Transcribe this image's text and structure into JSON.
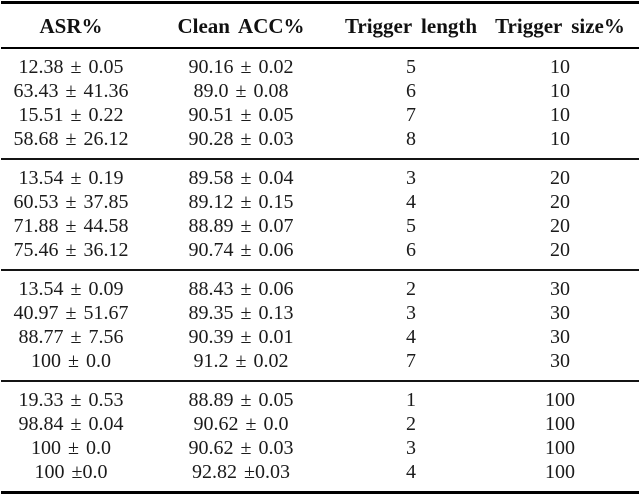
{
  "table": {
    "columns": [
      "ASR%",
      "Clean ACC%",
      "Trigger length",
      "Trigger size%"
    ],
    "groups": [
      {
        "trigger_size": "10",
        "rows": [
          [
            "12.38 ± 0.05",
            "90.16 ± 0.02",
            "5",
            "10"
          ],
          [
            "63.43 ± 41.36",
            "89.0 ± 0.08",
            "6",
            "10"
          ],
          [
            "15.51 ± 0.22",
            "90.51 ± 0.05",
            "7",
            "10"
          ],
          [
            "58.68 ± 26.12",
            "90.28 ± 0.03",
            "8",
            "10"
          ]
        ]
      },
      {
        "trigger_size": "20",
        "rows": [
          [
            "13.54 ± 0.19",
            "89.58 ± 0.04",
            "3",
            "20"
          ],
          [
            "60.53 ± 37.85",
            "89.12 ± 0.15",
            "4",
            "20"
          ],
          [
            "71.88 ± 44.58",
            "88.89 ± 0.07",
            "5",
            "20"
          ],
          [
            "75.46 ± 36.12",
            "90.74 ± 0.06",
            "6",
            "20"
          ]
        ]
      },
      {
        "trigger_size": "30",
        "rows": [
          [
            "13.54 ± 0.09",
            "88.43 ± 0.06",
            "2",
            "30"
          ],
          [
            "40.97 ± 51.67",
            "89.35 ± 0.13",
            "3",
            "30"
          ],
          [
            "88.77 ± 7.56",
            "90.39 ± 0.01",
            "4",
            "30"
          ],
          [
            "100 ± 0.0",
            "91.2 ± 0.02",
            "7",
            "30"
          ]
        ]
      },
      {
        "trigger_size": "100",
        "rows": [
          [
            "19.33 ± 0.53",
            "88.89 ± 0.05",
            "1",
            "100"
          ],
          [
            "98.84 ± 0.04",
            "90.62 ± 0.0",
            "2",
            "100"
          ],
          [
            "100 ± 0.0",
            "90.62 ± 0.03",
            "3",
            "100"
          ],
          [
            "100 ±0.0",
            "92.82 ±0.03",
            "4",
            "100"
          ]
        ]
      }
    ]
  },
  "colors": {
    "background": "#ffffff",
    "text": "#1b1b1b",
    "rule": "#000000"
  }
}
